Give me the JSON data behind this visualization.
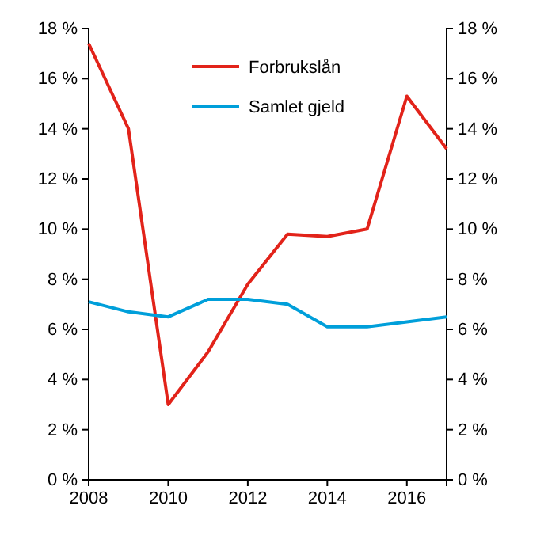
{
  "chart_data": {
    "type": "line",
    "x": [
      2008,
      2009,
      2010,
      2011,
      2012,
      2013,
      2014,
      2015,
      2016,
      2017
    ],
    "series": [
      {
        "name": "Forbrukslån",
        "color": "#e2231a",
        "values": [
          17.4,
          14.0,
          3.0,
          5.1,
          7.8,
          9.8,
          9.7,
          10.0,
          15.3,
          13.2
        ]
      },
      {
        "name": "Samlet gjeld",
        "color": "#009fda",
        "values": [
          7.1,
          6.7,
          6.5,
          7.2,
          7.2,
          7.0,
          6.1,
          6.1,
          6.3,
          6.5
        ]
      }
    ],
    "xlim": [
      2008,
      2017
    ],
    "xticks": [
      2008,
      2010,
      2012,
      2014,
      2016
    ],
    "ylim": [
      0,
      18
    ],
    "yticks": [
      {
        "value": 0,
        "label": "0 %"
      },
      {
        "value": 2,
        "label": "2 %"
      },
      {
        "value": 4,
        "label": "4 %"
      },
      {
        "value": 6,
        "label": "6 %"
      },
      {
        "value": 8,
        "label": "8 %"
      },
      {
        "value": 10,
        "label": "10 %"
      },
      {
        "value": 12,
        "label": "12 %"
      },
      {
        "value": 14,
        "label": "14 %"
      },
      {
        "value": 16,
        "label": "16 %"
      },
      {
        "value": 18,
        "label": "18 %"
      }
    ],
    "y2lim": [
      0,
      18
    ],
    "y2ticks": [
      {
        "value": 0,
        "label": "0 %"
      },
      {
        "value": 2,
        "label": "2 %"
      },
      {
        "value": 4,
        "label": "4 %"
      },
      {
        "value": 6,
        "label": "6 %"
      },
      {
        "value": 8,
        "label": "8 %"
      },
      {
        "value": 10,
        "label": "10 %"
      },
      {
        "value": 12,
        "label": "12 %"
      },
      {
        "value": 14,
        "label": "14 %"
      },
      {
        "value": 16,
        "label": "16 %"
      },
      {
        "value": 18,
        "label": "18 %"
      }
    ],
    "grid": false,
    "legend": "top",
    "marker": "none",
    "line_style": "solid"
  }
}
